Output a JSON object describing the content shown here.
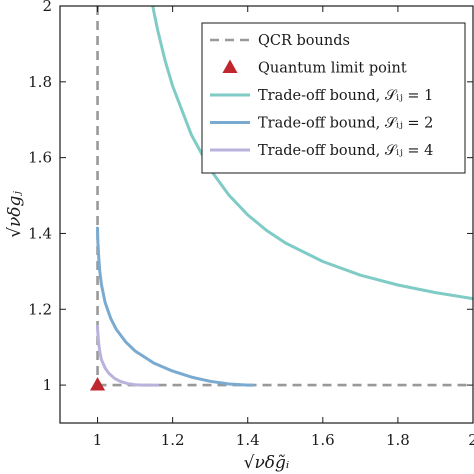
{
  "chart_data": {
    "type": "line",
    "xlabel": "√νδg̃ᵢ",
    "ylabel": "√νδgⱼ",
    "xlim": [
      0.9,
      2
    ],
    "ylim": [
      0.9,
      2
    ],
    "xticks": [
      1,
      1.2,
      1.4,
      1.6,
      1.8,
      2
    ],
    "yticks": [
      1,
      1.2,
      1.4,
      1.6,
      1.8,
      2
    ],
    "xtick_labels": [
      "1",
      "1.2",
      "1.4",
      "1.6",
      "1.8",
      "2"
    ],
    "ytick_labels": [
      "1",
      "1.2",
      "1.4",
      "1.6",
      "1.8",
      "2"
    ],
    "grid": false,
    "legend_position": "top-right",
    "legend": [
      {
        "label": "QCR bounds",
        "kind": "dashed",
        "color": "#999999"
      },
      {
        "label": "Quantum limit point",
        "kind": "triangle",
        "color": "#c0262d"
      },
      {
        "label": "Trade-off bound, 𝒮ᵢⱼ = 1",
        "kind": "line",
        "color": "#7fcbc6"
      },
      {
        "label": "Trade-off bound, 𝒮ᵢⱼ = 2",
        "kind": "line",
        "color": "#7aaad0"
      },
      {
        "label": "Trade-off bound, 𝒮ᵢⱼ = 4",
        "kind": "line",
        "color": "#b8b3dc"
      }
    ],
    "qcr_bounds": {
      "x": 1,
      "y": 1
    },
    "quantum_limit_point": {
      "x": 1,
      "y": 1
    },
    "series": [
      {
        "S": 1,
        "color": "#7fcbc6",
        "x": [
          1.147,
          1.16,
          1.18,
          1.2,
          1.25,
          1.3,
          1.35,
          1.4,
          1.45,
          1.5,
          1.6,
          1.7,
          1.8,
          1.9,
          2.0
        ],
        "y": [
          2.0,
          1.937,
          1.856,
          1.789,
          1.66,
          1.569,
          1.501,
          1.449,
          1.408,
          1.375,
          1.326,
          1.29,
          1.264,
          1.244,
          1.228
        ]
      },
      {
        "S": 2,
        "color": "#7aaad0",
        "x": [
          1.0,
          1.001,
          1.003,
          1.006,
          1.01,
          1.02,
          1.035,
          1.05,
          1.075,
          1.1,
          1.15,
          1.2,
          1.25,
          1.3,
          1.35,
          1.4,
          1.414
        ],
        "y": [
          1.414,
          1.376,
          1.338,
          1.3,
          1.267,
          1.218,
          1.176,
          1.147,
          1.114,
          1.09,
          1.058,
          1.037,
          1.021,
          1.01,
          1.003,
          1.0,
          1.0
        ]
      },
      {
        "S": 4,
        "color": "#b8b3dc",
        "x": [
          1.0,
          1.001,
          1.003,
          1.006,
          1.01,
          1.02,
          1.03,
          1.045,
          1.06,
          1.08,
          1.1,
          1.12,
          1.15,
          1.16
        ],
        "y": [
          1.155,
          1.135,
          1.11,
          1.088,
          1.068,
          1.045,
          1.031,
          1.018,
          1.01,
          1.004,
          1.001,
          1.0,
          1.0,
          1.0
        ]
      }
    ]
  }
}
